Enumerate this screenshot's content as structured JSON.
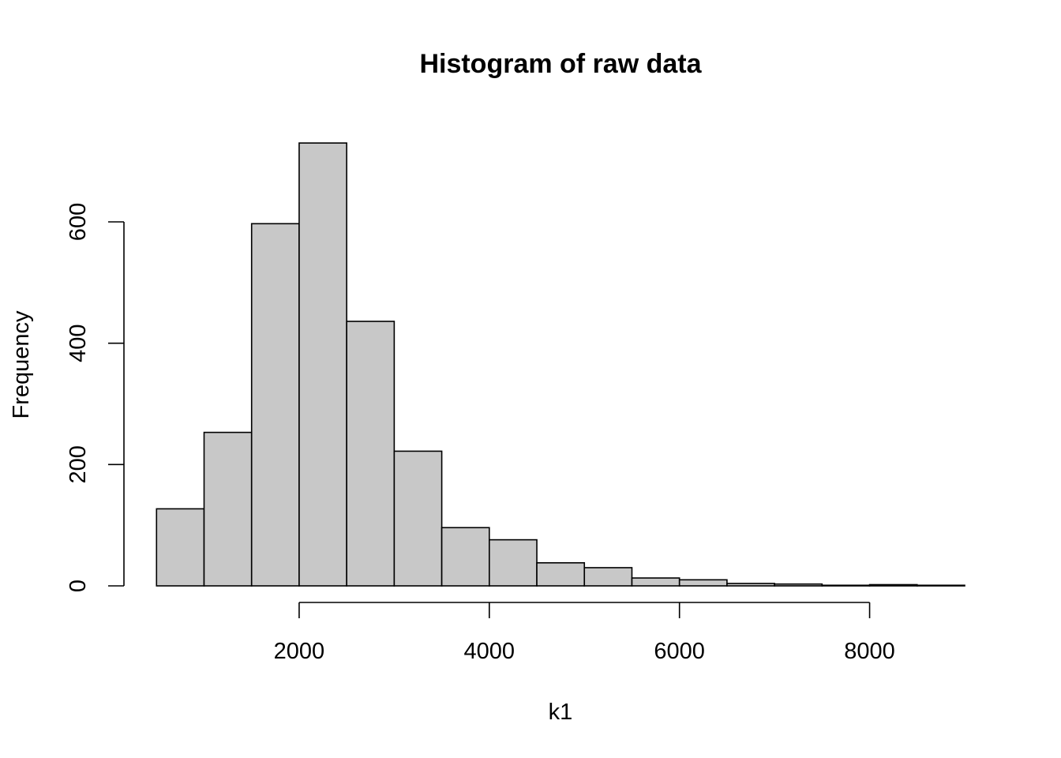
{
  "chart_data": {
    "type": "bar",
    "title": "Histogram of raw data",
    "xlabel": "k1",
    "ylabel": "Frequency",
    "bar_color": "#c8c8c8",
    "stroke_color": "#000000",
    "bins": [
      {
        "start": 500,
        "end": 1000,
        "value": 127
      },
      {
        "start": 1000,
        "end": 1500,
        "value": 253
      },
      {
        "start": 1500,
        "end": 2000,
        "value": 597
      },
      {
        "start": 2000,
        "end": 2500,
        "value": 730
      },
      {
        "start": 2500,
        "end": 3000,
        "value": 436
      },
      {
        "start": 3000,
        "end": 3500,
        "value": 222
      },
      {
        "start": 3500,
        "end": 4000,
        "value": 96
      },
      {
        "start": 4000,
        "end": 4500,
        "value": 76
      },
      {
        "start": 4500,
        "end": 5000,
        "value": 38
      },
      {
        "start": 5000,
        "end": 5500,
        "value": 30
      },
      {
        "start": 5500,
        "end": 6000,
        "value": 13
      },
      {
        "start": 6000,
        "end": 6500,
        "value": 10
      },
      {
        "start": 6500,
        "end": 7000,
        "value": 4
      },
      {
        "start": 7000,
        "end": 7500,
        "value": 3
      },
      {
        "start": 7500,
        "end": 8000,
        "value": 1
      },
      {
        "start": 8000,
        "end": 8500,
        "value": 2
      },
      {
        "start": 8500,
        "end": 9000,
        "value": 1
      }
    ],
    "x_ticks": [
      2000,
      4000,
      6000,
      8000
    ],
    "y_ticks": [
      0,
      200,
      400,
      600
    ],
    "xlim": [
      500,
      9000
    ],
    "ylim": [
      0,
      730
    ],
    "grid": false,
    "legend": "none"
  }
}
